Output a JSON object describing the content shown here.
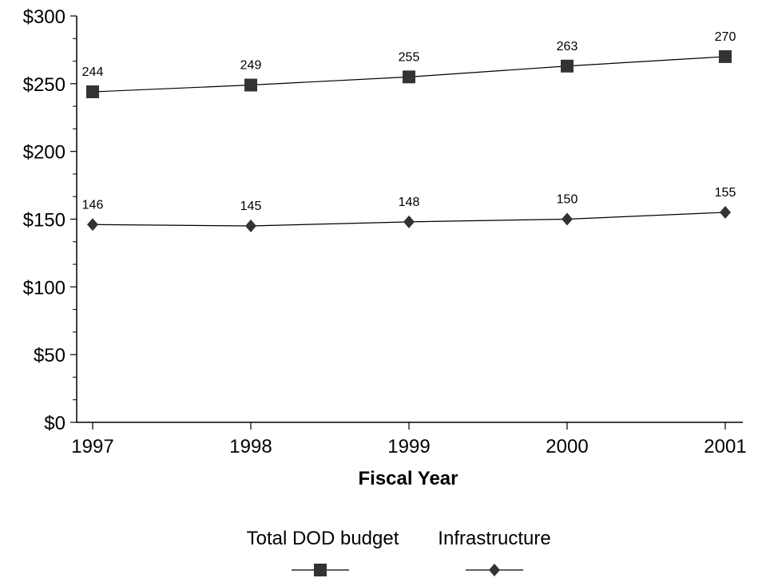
{
  "chart_data": {
    "type": "line",
    "xlabel": "Fiscal Year",
    "ylabel": "",
    "categories": [
      "1997",
      "1998",
      "1999",
      "2000",
      "2001"
    ],
    "ylim": [
      0,
      300
    ],
    "yticks": [
      "$0",
      "$50",
      "$100",
      "$150",
      "$200",
      "$250",
      "$300"
    ],
    "ytick_values": [
      0,
      50,
      100,
      150,
      200,
      250,
      300
    ],
    "grid": false,
    "legend_position": "bottom",
    "series": [
      {
        "name": "Total DOD budget",
        "marker": "square",
        "color": "#333333",
        "values": [
          244,
          249,
          255,
          263,
          270
        ]
      },
      {
        "name": "Infrastructure",
        "marker": "diamond",
        "color": "#333333",
        "values": [
          146,
          145,
          148,
          150,
          155
        ]
      }
    ]
  }
}
